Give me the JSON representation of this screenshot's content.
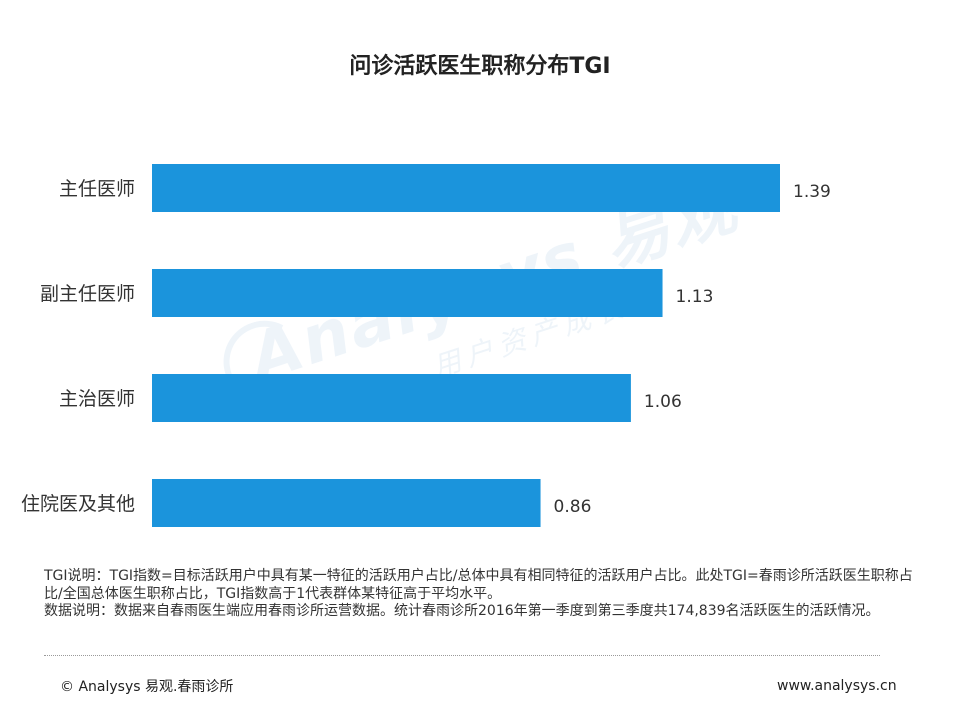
{
  "chart_data": {
    "type": "bar",
    "orientation": "horizontal",
    "title": "问诊活跃医生职称分布TGI",
    "categories": [
      "主任医师",
      "副主任医师",
      "主治医师",
      "住院医及其他"
    ],
    "values": [
      1.39,
      1.13,
      1.06,
      0.86
    ],
    "value_labels": [
      "1.39",
      "1.13",
      "1.06",
      "0.86"
    ],
    "xlim": [
      0,
      1.39
    ],
    "bar_color": "#1b94dc",
    "grid": false,
    "legend": "none",
    "xlabel": "",
    "ylabel": ""
  },
  "watermark": {
    "brand": "Analysys 易观",
    "slogan": "用户资产成长"
  },
  "notes": {
    "tgi_note": "TGI说明：TGI指数=目标活跃用户中具有某一特征的活跃用户占比/总体中具有相同特征的活跃用户占比。此处TGI=春雨诊所活跃医生职称占比/全国总体医生职称占比，TGI指数高于1代表群体某特征高于平均水平。",
    "data_note": "数据说明：数据来自春雨医生端应用春雨诊所运营数据。统计春雨诊所2016年第一季度到第三季度共174,839名活跃医生的活跃情况。"
  },
  "footer": {
    "copyright": "© Analysys 易观.春雨诊所",
    "website": "www.analysys.cn"
  }
}
